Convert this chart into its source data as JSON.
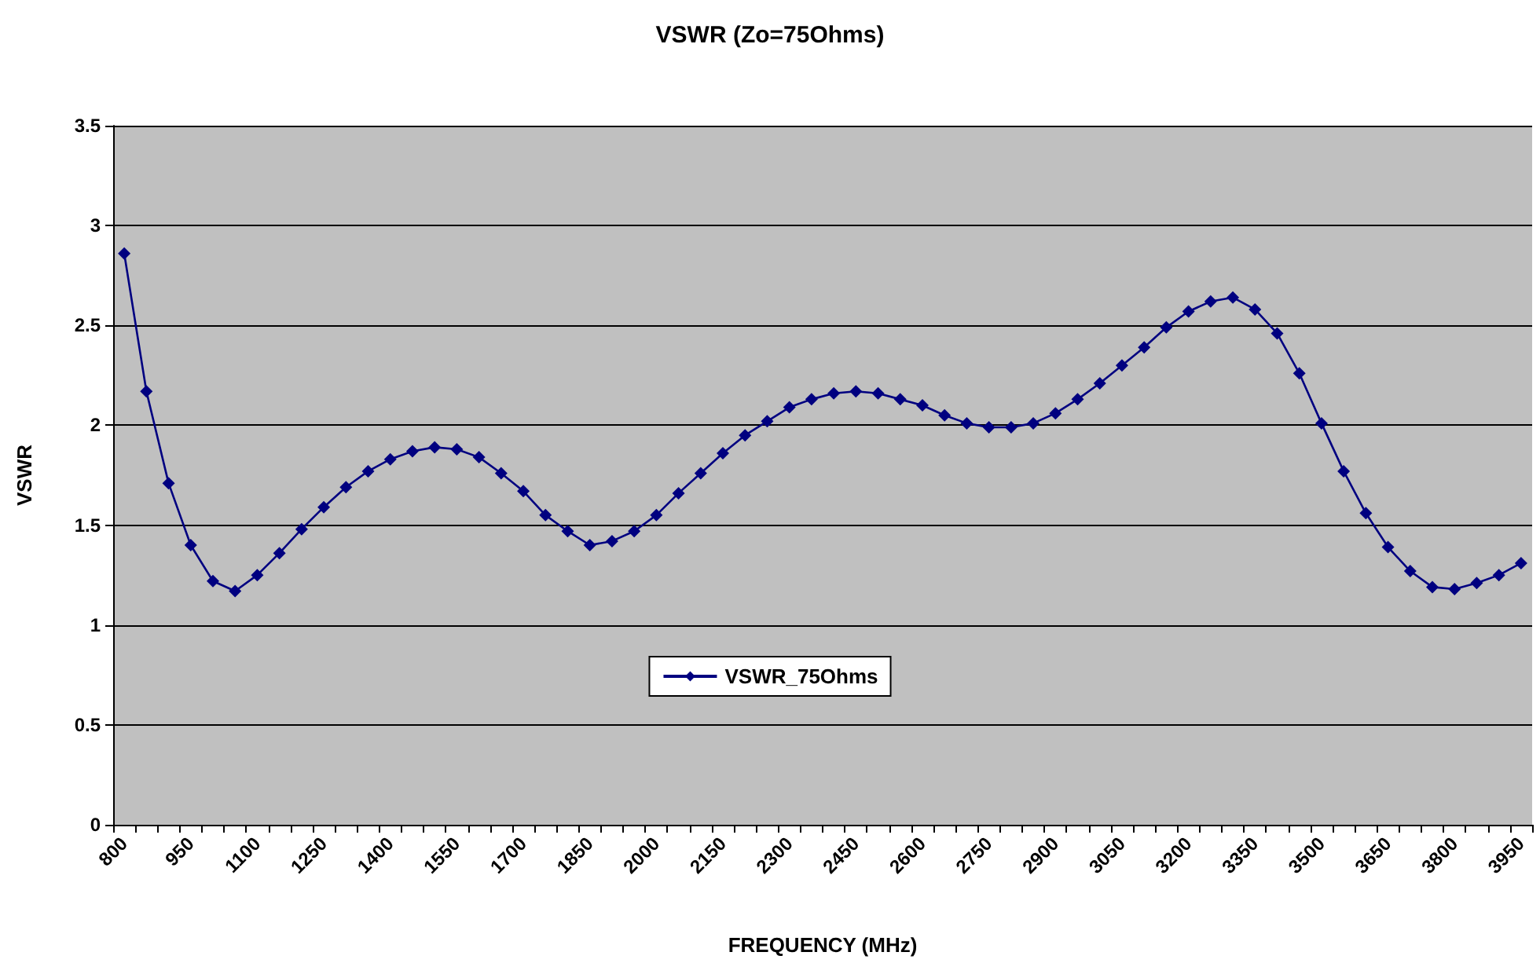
{
  "chart_data": {
    "type": "line",
    "title": "VSWR (Zo=75Ohms)",
    "xlabel": "FREQUENCY (MHz)",
    "ylabel": "VSWR",
    "categories": [
      "800",
      null,
      null,
      "950",
      null,
      null,
      "1100",
      null,
      null,
      "1250",
      null,
      null,
      "1400",
      null,
      null,
      "1550",
      null,
      null,
      "1700",
      null,
      null,
      "1850",
      null,
      null,
      "2000",
      null,
      null,
      "2150",
      null,
      null,
      "2300",
      null,
      null,
      "2450",
      null,
      null,
      "2600",
      null,
      null,
      "2750",
      null,
      null,
      "2900",
      null,
      null,
      "3050",
      null,
      null,
      "3200",
      null,
      null,
      "3350",
      null,
      null,
      "3500",
      null,
      null,
      "3650",
      null,
      null,
      "3800",
      null,
      null,
      "3950"
    ],
    "series": [
      {
        "name": "VSWR_75Ohms",
        "color": "#000080",
        "values": [
          2.86,
          2.17,
          1.71,
          1.4,
          1.22,
          1.17,
          1.25,
          1.36,
          1.48,
          1.59,
          1.69,
          1.77,
          1.83,
          1.87,
          1.89,
          1.88,
          1.84,
          1.76,
          1.67,
          1.55,
          1.47,
          1.4,
          1.42,
          1.47,
          1.55,
          1.66,
          1.76,
          1.86,
          1.95,
          2.02,
          2.09,
          2.13,
          2.16,
          2.17,
          2.16,
          2.13,
          2.1,
          2.05,
          2.01,
          1.99,
          1.99,
          2.01,
          2.06,
          2.13,
          2.21,
          2.3,
          2.39,
          2.49,
          2.57,
          2.62,
          2.64,
          2.58,
          2.46,
          2.26,
          2.01,
          1.77,
          1.56,
          1.39,
          1.27,
          1.19,
          1.18,
          1.21,
          1.25,
          1.31
        ]
      }
    ],
    "ylim": [
      0,
      3.5
    ],
    "yticks": [
      0,
      0.5,
      1,
      1.5,
      2,
      2.5,
      3,
      3.5
    ],
    "grid": "y",
    "legend": "bottom",
    "marker": "diamond",
    "line_style": "solid"
  }
}
